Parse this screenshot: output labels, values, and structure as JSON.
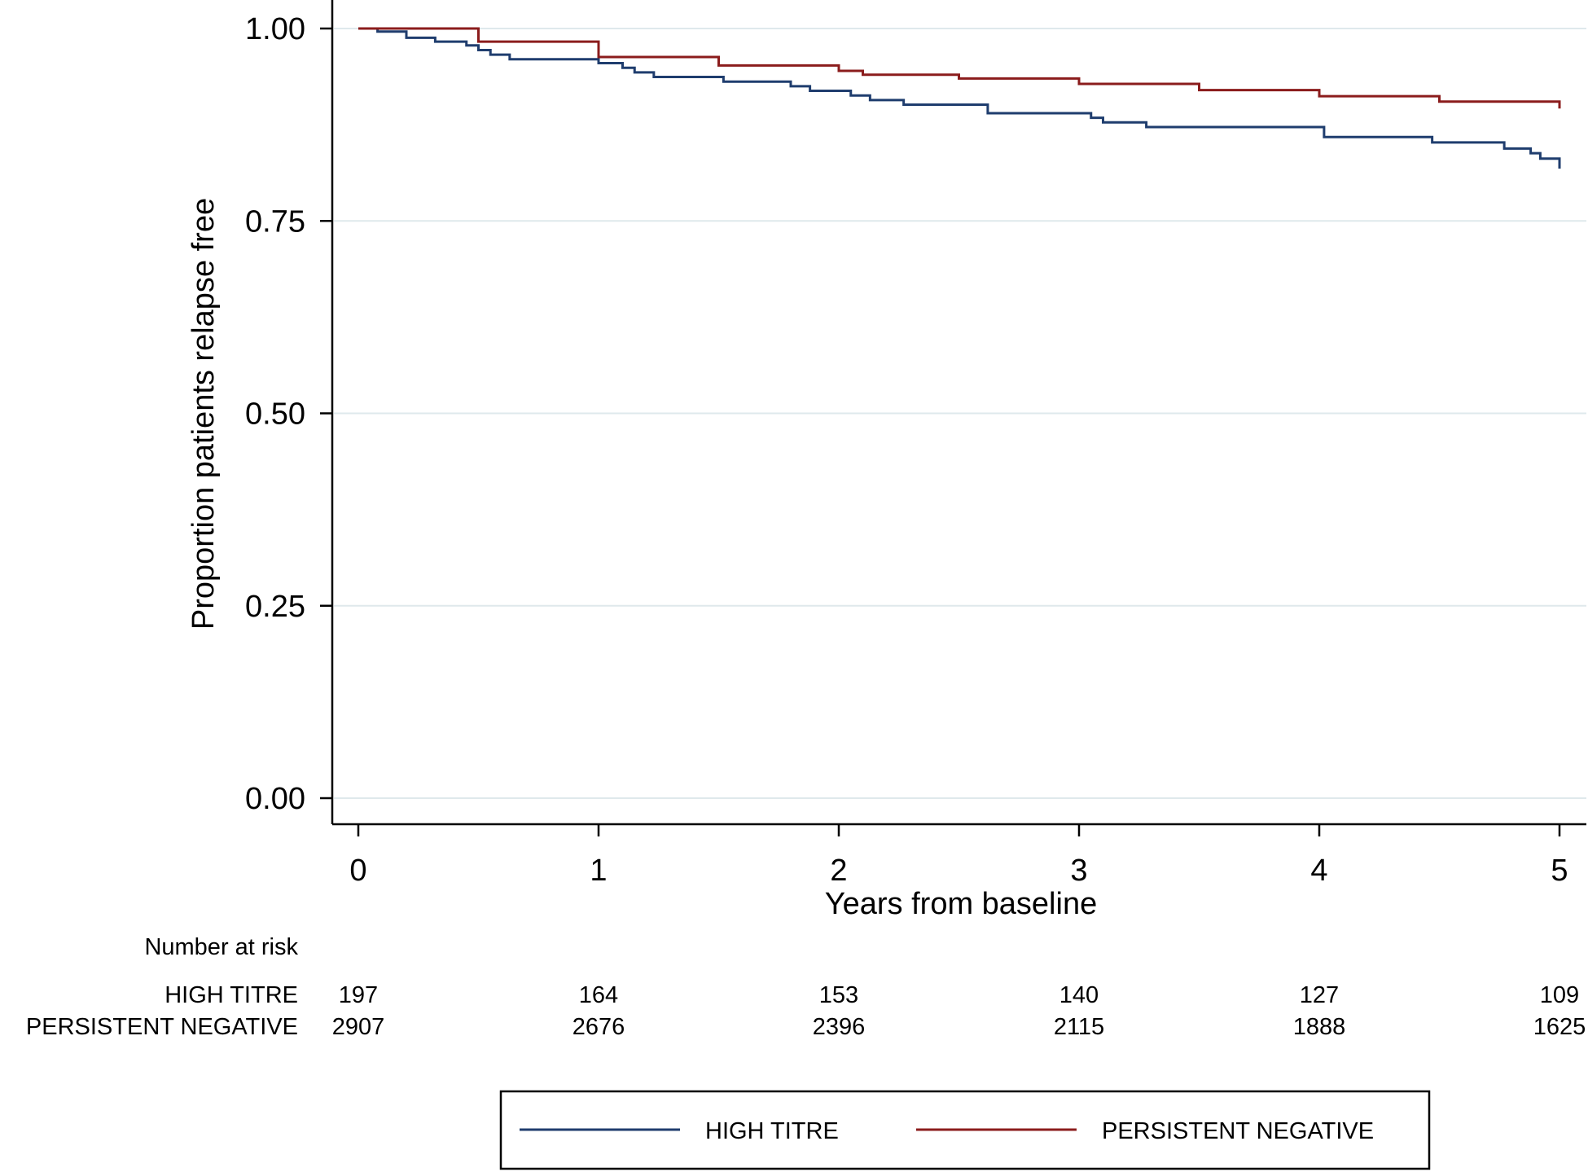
{
  "chart_data": {
    "type": "line",
    "subtype": "kaplan-meier step",
    "xlabel": "Years from baseline",
    "ylabel": "Proportion patients relapse free",
    "xlim": [
      0,
      5
    ],
    "ylim": [
      0,
      1
    ],
    "x_ticks": [
      0,
      1,
      2,
      3,
      4,
      5
    ],
    "x_tick_labels": [
      "0",
      "1",
      "2",
      "3",
      "4",
      "5"
    ],
    "y_ticks": [
      0,
      0.25,
      0.5,
      0.75,
      1.0
    ],
    "y_tick_labels": [
      "0.00",
      "0.25",
      "0.50",
      "0.75",
      "1.00"
    ],
    "grid": "horizontal",
    "legend_position": "bottom",
    "series": [
      {
        "name": "HIGH TITRE",
        "color": "#1f3d6e",
        "x": [
          0,
          0.08,
          0.2,
          0.32,
          0.45,
          0.5,
          0.55,
          0.63,
          1.0,
          1.1,
          1.15,
          1.23,
          1.52,
          1.8,
          1.88,
          2.05,
          2.13,
          2.27,
          2.62,
          3.05,
          3.1,
          3.28,
          4.02,
          4.47,
          4.77,
          4.88,
          4.92,
          5.0
        ],
        "y": [
          1.0,
          0.996,
          0.988,
          0.983,
          0.978,
          0.972,
          0.966,
          0.96,
          0.955,
          0.949,
          0.943,
          0.937,
          0.931,
          0.925,
          0.919,
          0.913,
          0.907,
          0.901,
          0.89,
          0.884,
          0.878,
          0.872,
          0.859,
          0.852,
          0.844,
          0.838,
          0.831,
          0.818
        ]
      },
      {
        "name": "PERSISTENT NEGATIVE",
        "color": "#8b1c1c",
        "x": [
          0,
          0.5,
          1.0,
          1.5,
          2.0,
          2.1,
          2.5,
          3.0,
          3.5,
          4.0,
          4.5,
          5.0
        ],
        "y": [
          1.0,
          0.983,
          0.963,
          0.952,
          0.945,
          0.94,
          0.935,
          0.928,
          0.92,
          0.912,
          0.905,
          0.896
        ]
      }
    ],
    "risk_table": {
      "title": "Number at risk",
      "groups": [
        {
          "label": "HIGH TITRE",
          "counts": [
            "197",
            "164",
            "153",
            "140",
            "127",
            "109"
          ]
        },
        {
          "label": "PERSISTENT NEGATIVE",
          "counts": [
            "2907",
            "2676",
            "2396",
            "2115",
            "1888",
            "1625"
          ]
        }
      ]
    }
  }
}
